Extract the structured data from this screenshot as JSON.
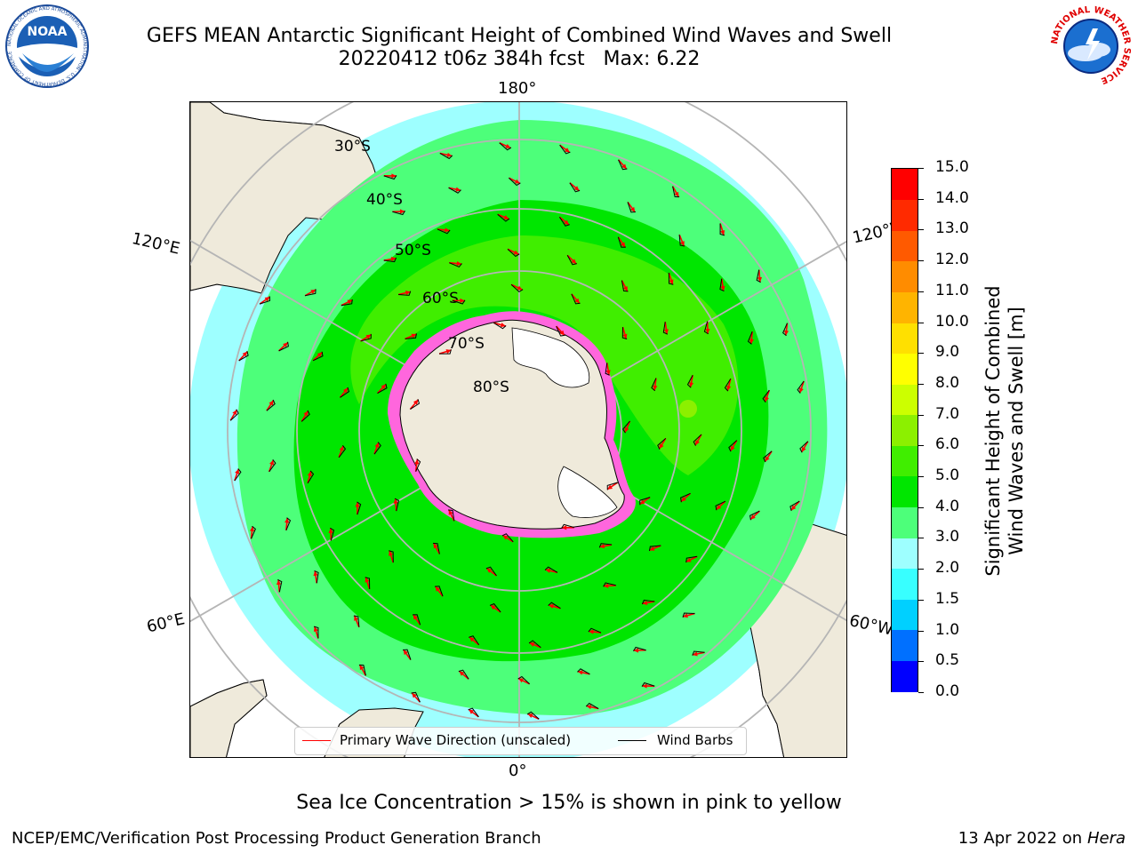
{
  "header": {
    "title": "GEFS MEAN Antarctic Significant Height of Combined Wind Waves and Swell",
    "subtitle": "20220412 t06z 384h fcst   Max: 6.22"
  },
  "logos": {
    "left": "NOAA",
    "left_ring": "NATIONAL OCEANIC AND ATMOSPHERIC ADMINISTRATION · U.S. DEPARTMENT OF COMMERCE",
    "right_ring": "NATIONAL WEATHER SERVICE"
  },
  "map": {
    "projection": "south-polar-stereographic",
    "lon_labels": {
      "top": "180°",
      "bottom": "0°",
      "left_upper": "120°E",
      "left_lower": "60°E",
      "right_upper": "120°W",
      "right_lower": "60°W"
    },
    "lat_labels": [
      "30°S",
      "40°S",
      "50°S",
      "60°S",
      "70°S",
      "80°S"
    ]
  },
  "legend": {
    "wave_label": "Primary Wave Direction (unscaled)",
    "wind_label": "Wind Barbs",
    "wave_color": "#ff0000",
    "wind_color": "#000000"
  },
  "colorbar": {
    "title_line1": "Significant Height of Combined",
    "title_line2": "Wind Waves and Swell [m]",
    "ticks": [
      "0.0",
      "0.5",
      "1.0",
      "1.5",
      "2.0",
      "3.0",
      "4.0",
      "5.0",
      "6.0",
      "7.0",
      "8.0",
      "9.0",
      "10.0",
      "11.0",
      "12.0",
      "13.0",
      "14.0",
      "15.0"
    ],
    "colors": [
      "#0000ff",
      "#0070ff",
      "#00d0ff",
      "#38ffff",
      "#9effff",
      "#4dff7a",
      "#00e600",
      "#40ee00",
      "#8cf000",
      "#ccff00",
      "#ffff00",
      "#ffe000",
      "#ffb400",
      "#ff8c00",
      "#ff5a00",
      "#ff2a00",
      "#ff0000"
    ]
  },
  "caption": "Sea Ice Concentration > 15% is shown in pink to yellow",
  "footer": {
    "left": "NCEP/EMC/Verification Post Processing Product Generation Branch",
    "right_prefix": "13 Apr 2022 on ",
    "right_host": "Hera"
  }
}
